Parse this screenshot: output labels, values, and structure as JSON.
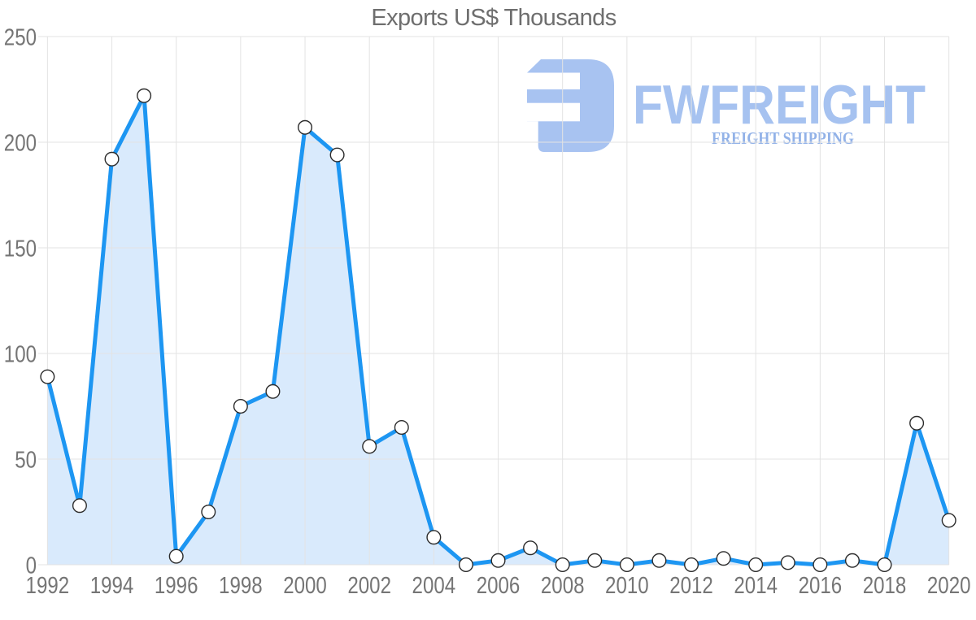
{
  "title": "Exports US$ Thousands",
  "watermark": {
    "brand": "FWFREIGHT",
    "tagline": "FREIGHT SHIPPING",
    "icon": "fwfreight-f-logo",
    "brand_color": "#a6c2f0",
    "tagline_color": "#92b2e8",
    "icon_color": "#a8c3f1"
  },
  "chart_data": {
    "type": "area",
    "title": "Exports US$ Thousands",
    "xlabel": "",
    "ylabel": "",
    "x": [
      1992,
      1993,
      1994,
      1995,
      1996,
      1997,
      1998,
      1999,
      2000,
      2001,
      2002,
      2003,
      2004,
      2005,
      2006,
      2007,
      2008,
      2009,
      2010,
      2011,
      2012,
      2013,
      2014,
      2015,
      2016,
      2017,
      2018,
      2019,
      2020
    ],
    "series": [
      {
        "name": "Exports US$ Thousands",
        "values": [
          89,
          28,
          192,
          222,
          4,
          25,
          75,
          82,
          207,
          194,
          56,
          65,
          13,
          0,
          2,
          8,
          0,
          2,
          0,
          2,
          0,
          3,
          0,
          1,
          0,
          2,
          0,
          67,
          21
        ]
      }
    ],
    "ylim": [
      0,
      250
    ],
    "yticks": [
      0,
      50,
      100,
      150,
      200,
      250
    ],
    "xticks": [
      1992,
      1994,
      1996,
      1998,
      2000,
      2002,
      2004,
      2006,
      2008,
      2010,
      2012,
      2014,
      2016,
      2018,
      2020
    ],
    "grid": true,
    "legend": false,
    "markers": true,
    "colors": {
      "line": "#1d96f2",
      "fill": "#d9eafc",
      "marker_fill": "#ffffff",
      "marker_stroke": "#2b2b2b",
      "grid": "#e3e3e3",
      "tick_label": "#757575",
      "title": "#6e6e6e"
    }
  }
}
